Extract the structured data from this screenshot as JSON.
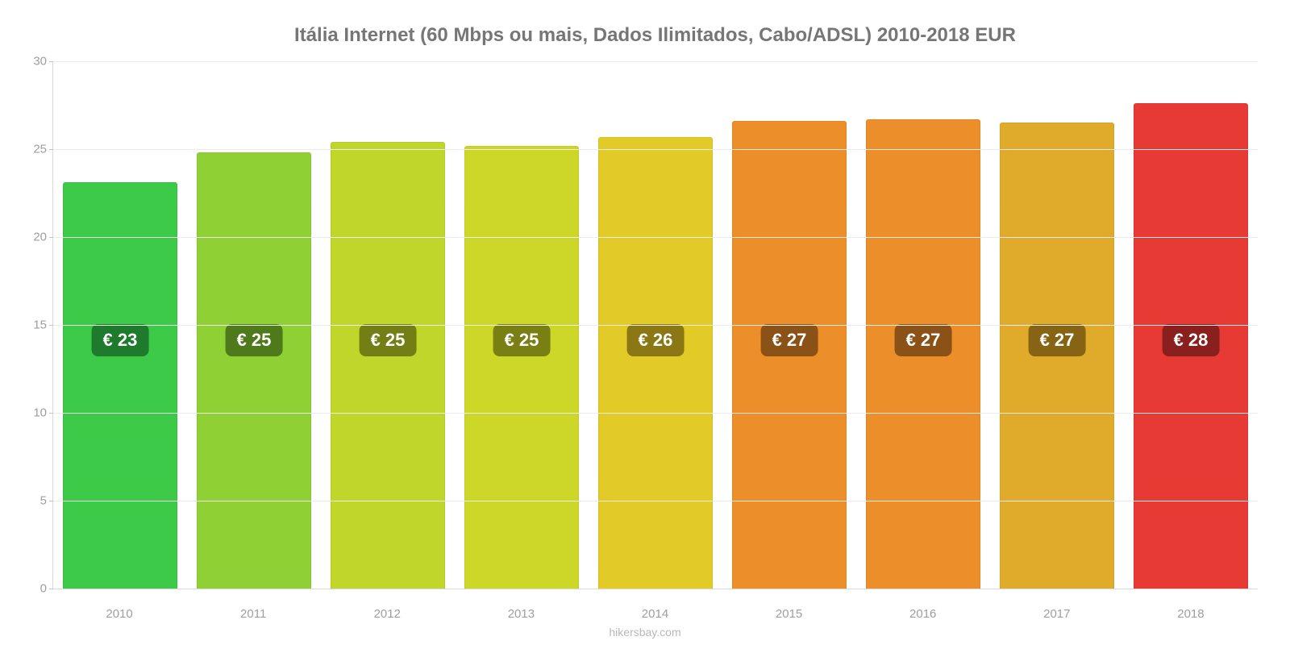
{
  "chart": {
    "type": "bar",
    "title": "Itália Internet (60 Mbps ou mais, Dados Ilimitados, Cabo/ADSL) 2010-2018 EUR",
    "title_fontsize": 24,
    "title_color": "#767676",
    "background_color": "#ffffff",
    "ylim": [
      0,
      30
    ],
    "ytick_step": 5,
    "yticks": [
      0,
      5,
      10,
      15,
      20,
      25,
      30
    ],
    "ytick_color": "#9e9e9e",
    "ytick_fontsize": 15,
    "grid_color": "#ececec",
    "axis_color": "#d9d9d9",
    "bar_width": 0.86,
    "value_label_fontsize": 22,
    "value_label_text_color": "#ffffff",
    "xlabel_color": "#9e9e9e",
    "xlabel_fontsize": 15,
    "categories": [
      "2010",
      "2011",
      "2012",
      "2013",
      "2014",
      "2015",
      "2016",
      "2017",
      "2018"
    ],
    "values": [
      23.1,
      24.8,
      25.4,
      25.2,
      25.7,
      26.6,
      26.7,
      26.5,
      27.6
    ],
    "value_labels": [
      "€ 23",
      "€ 25",
      "€ 25",
      "€ 25",
      "€ 26",
      "€ 27",
      "€ 27",
      "€ 27",
      "€ 28"
    ],
    "bar_colors": [
      "#3dca49",
      "#8fd035",
      "#c0d62a",
      "#cdd728",
      "#e2ca27",
      "#ec8e2a",
      "#ec8e2a",
      "#e0ab2a",
      "#e73a35"
    ],
    "badge_bg_colors": [
      "#1e7a2c",
      "#4f7a1b",
      "#737f14",
      "#7a7f13",
      "#8b7815",
      "#8b5217",
      "#8b5217",
      "#876414",
      "#8a201d"
    ],
    "credit": "hikersbay.com",
    "credit_color": "#b8b8b8",
    "credit_fontsize": 14
  }
}
